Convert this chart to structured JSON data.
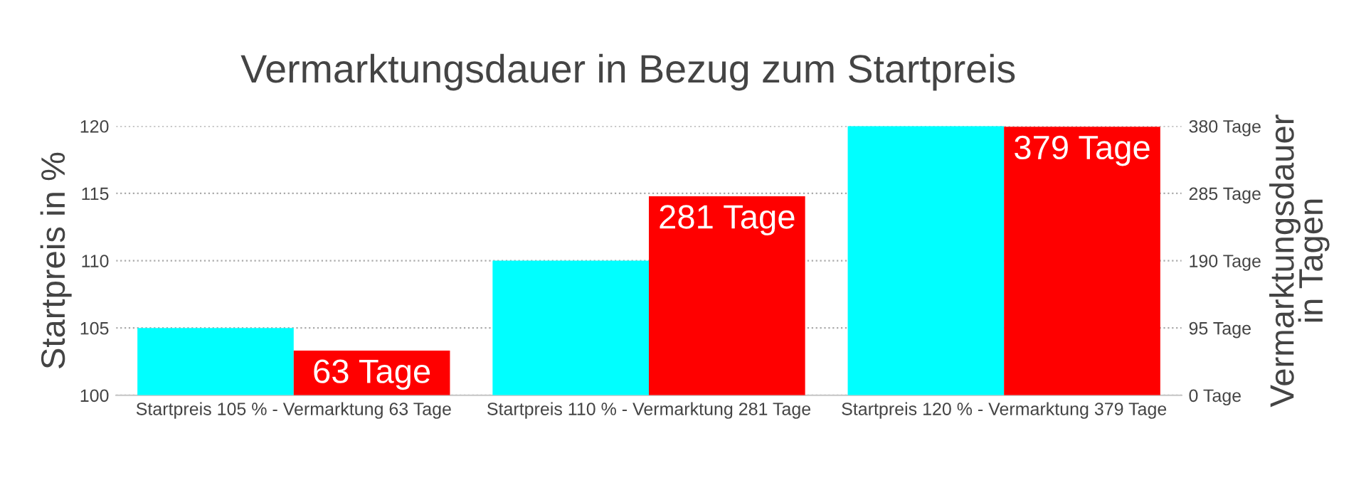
{
  "chart_data": {
    "type": "bar",
    "title": "Vermarktungsdauer in Bezug zum Startpreis",
    "categories": [
      "Startpreis 105 % - Vermarktung 63 Tage",
      "Startpreis 110 % - Vermarktung 281 Tage",
      "Startpreis 120 % - Vermarktung 379 Tage"
    ],
    "series": [
      {
        "color": "#00ffff",
        "values": [
          105,
          110,
          120
        ]
      },
      {
        "color": "#ff0000",
        "values": [
          63,
          281,
          379
        ],
        "axis": "y2",
        "value_labels": [
          "63 Tage",
          "281 Tage",
          "379 Tage"
        ]
      }
    ],
    "ylabel": "Startpreis in %",
    "y2label": "Vermarktungsdauer\nin Tagen",
    "ylim": [
      100,
      120
    ],
    "yticks": [
      100,
      105,
      110,
      115,
      120
    ],
    "y2lim": [
      0,
      380
    ],
    "y2ticks": [
      {
        "value": 0,
        "label": "0 Tage"
      },
      {
        "value": 95,
        "label": "95 Tage"
      },
      {
        "value": 190,
        "label": "190 Tage"
      },
      {
        "value": 285,
        "label": "285 Tage"
      },
      {
        "value": 380,
        "label": "380 Tage"
      }
    ],
    "grid": "y",
    "legend": false
  }
}
